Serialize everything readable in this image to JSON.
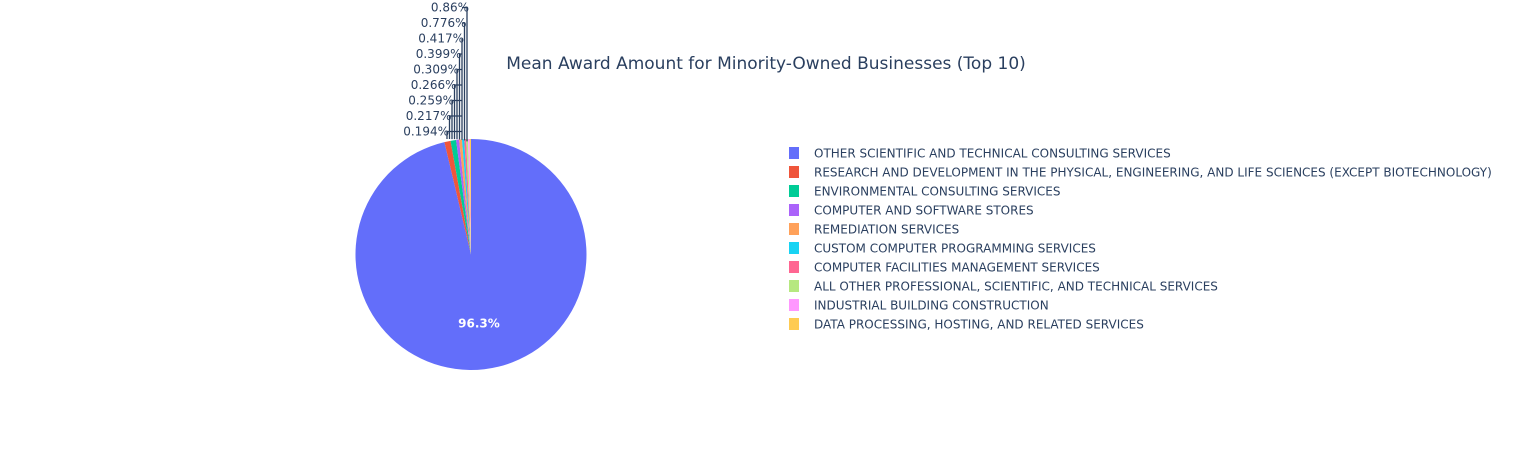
{
  "chart_data": {
    "type": "pie",
    "title": "Mean Award Amount for Minority-Owned Businesses (Top 10)",
    "legend_position": "right",
    "slices": [
      {
        "label": "OTHER SCIENTIFIC AND TECHNICAL CONSULTING SERVICES",
        "percent": 96.3,
        "percent_text": "96.3%",
        "color": "#636efa"
      },
      {
        "label": "RESEARCH AND DEVELOPMENT IN THE PHYSICAL, ENGINEERING, AND LIFE SCIENCES (EXCEPT BIOTECHNOLOGY)",
        "percent": 0.86,
        "percent_text": "0.86%",
        "color": "#EF553B"
      },
      {
        "label": "ENVIRONMENTAL CONSULTING SERVICES",
        "percent": 0.776,
        "percent_text": "0.776%",
        "color": "#00cc96"
      },
      {
        "label": "COMPUTER AND SOFTWARE STORES",
        "percent": 0.417,
        "percent_text": "0.417%",
        "color": "#ab63fa"
      },
      {
        "label": "REMEDIATION SERVICES",
        "percent": 0.399,
        "percent_text": "0.399%",
        "color": "#FFA15A"
      },
      {
        "label": "CUSTOM COMPUTER PROGRAMMING SERVICES",
        "percent": 0.309,
        "percent_text": "0.309%",
        "color": "#19d3f3"
      },
      {
        "label": "COMPUTER FACILITIES MANAGEMENT SERVICES",
        "percent": 0.266,
        "percent_text": "0.266%",
        "color": "#FF6692"
      },
      {
        "label": "ALL OTHER PROFESSIONAL, SCIENTIFIC, AND TECHNICAL SERVICES",
        "percent": 0.259,
        "percent_text": "0.259%",
        "color": "#B6E880"
      },
      {
        "label": "INDUSTRIAL BUILDING CONSTRUCTION",
        "percent": 0.217,
        "percent_text": "0.217%",
        "color": "#FF97FF"
      },
      {
        "label": "DATA PROCESSING, HOSTING, AND RELATED SERVICES",
        "percent": 0.194,
        "percent_text": "0.194%",
        "color": "#FECB52"
      }
    ]
  }
}
